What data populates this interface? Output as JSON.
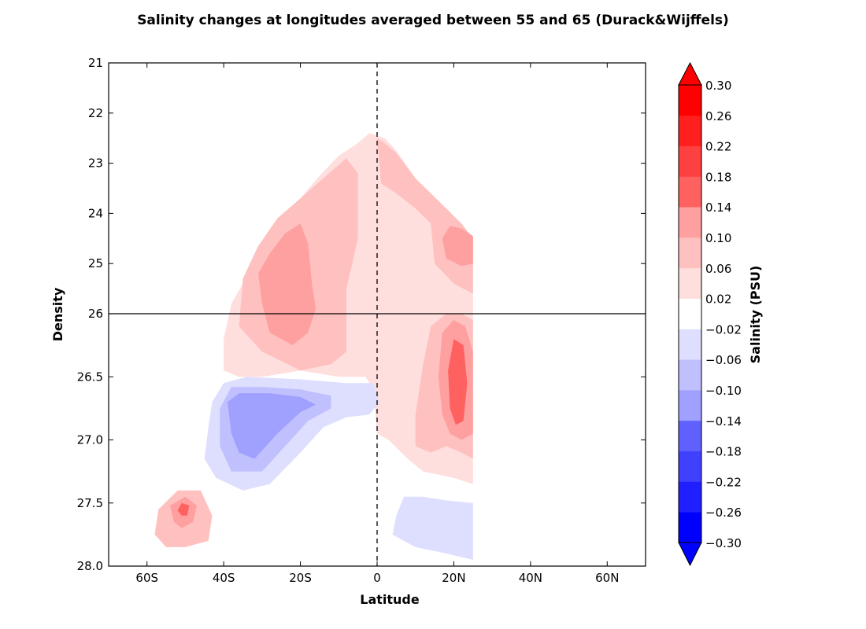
{
  "chart_data": {
    "type": "contour",
    "title": "Salinity changes at longitudes averaged between 55 and 65 (Durack&Wijffels)",
    "xlabel": "Latitude",
    "ylabel": "Density",
    "colorbar_label": "Salinity (PSU)",
    "x_ticks": [
      {
        "value": -60,
        "label": "60S"
      },
      {
        "value": -40,
        "label": "40S"
      },
      {
        "value": -20,
        "label": "20S"
      },
      {
        "value": 0,
        "label": "0"
      },
      {
        "value": 20,
        "label": "20N"
      },
      {
        "value": 40,
        "label": "40N"
      },
      {
        "value": 60,
        "label": "60N"
      }
    ],
    "xlim": [
      -70,
      70
    ],
    "y_ticks": [
      {
        "value": 21,
        "label": "21"
      },
      {
        "value": 22,
        "label": "22"
      },
      {
        "value": 23,
        "label": "23"
      },
      {
        "value": 24,
        "label": "24"
      },
      {
        "value": 25,
        "label": "25"
      },
      {
        "value": 26,
        "label": "26"
      },
      {
        "value": 26.5,
        "label": "26.5"
      },
      {
        "value": 27.0,
        "label": "27.0"
      },
      {
        "value": 27.5,
        "label": "27.5"
      },
      {
        "value": 28.0,
        "label": "28.0"
      }
    ],
    "y_axis_note": "inverted, piecewise: 21-26 linear, 26-28 stretched",
    "reference_lines": [
      {
        "orientation": "vertical",
        "value": 0,
        "style": "dashed"
      },
      {
        "orientation": "horizontal",
        "value": 26,
        "style": "solid"
      }
    ],
    "levels": [
      -0.3,
      -0.26,
      -0.22,
      -0.18,
      -0.14,
      -0.1,
      -0.06,
      -0.02,
      0.02,
      0.06,
      0.1,
      0.14,
      0.18,
      0.22,
      0.26,
      0.3
    ],
    "level_labels": [
      "−0.30",
      "−0.26",
      "−0.22",
      "−0.18",
      "−0.14",
      "−0.10",
      "−0.06",
      "−0.02",
      "0.02",
      "0.06",
      "0.10",
      "0.14",
      "0.18",
      "0.22",
      "0.26",
      "0.30"
    ],
    "band_colors": [
      "#0000ff",
      "#1f1fff",
      "#4040ff",
      "#6060ff",
      "#a0a0ff",
      "#c0c0ff",
      "#dedeff",
      "#ffffff",
      "#ffdede",
      "#ffc0c0",
      "#ffa0a0",
      "#ff6060",
      "#ff4040",
      "#ff1f1f",
      "#ff0000"
    ],
    "extend": "both",
    "regions": [
      {
        "band": 8,
        "sign": "positive",
        "points": [
          [
            -40,
            26.45
          ],
          [
            -40,
            26.2
          ],
          [
            -38,
            25.8
          ],
          [
            -35,
            25.4
          ],
          [
            -30,
            24.7
          ],
          [
            -25,
            24.1
          ],
          [
            -20,
            23.7
          ],
          [
            -15,
            23.25
          ],
          [
            -10,
            22.85
          ],
          [
            -5,
            22.6
          ],
          [
            -2,
            22.4
          ],
          [
            2,
            22.5
          ],
          [
            5,
            22.75
          ],
          [
            10,
            23.3
          ],
          [
            13,
            23.6
          ],
          [
            16,
            23.8
          ],
          [
            20,
            24.1
          ],
          [
            22,
            24.3
          ],
          [
            25,
            24.5
          ],
          [
            25,
            27.35
          ],
          [
            20,
            27.3
          ],
          [
            12,
            27.25
          ],
          [
            8,
            27.15
          ],
          [
            3,
            27.0
          ],
          [
            0,
            26.95
          ],
          [
            -1,
            26.6
          ],
          [
            -3,
            26.5
          ],
          [
            -10,
            26.5
          ],
          [
            -20,
            26.45
          ],
          [
            -30,
            26.5
          ],
          [
            -36,
            26.5
          ]
        ]
      },
      {
        "band": 9,
        "sign": "positive",
        "points": [
          [
            -36,
            26.1
          ],
          [
            -35,
            25.3
          ],
          [
            -31,
            24.65
          ],
          [
            -26,
            24.1
          ],
          [
            -20,
            23.7
          ],
          [
            -14,
            23.3
          ],
          [
            -8,
            22.9
          ],
          [
            -5,
            23.2
          ],
          [
            -5,
            24.5
          ],
          [
            -8,
            25.5
          ],
          [
            -8,
            26.3
          ],
          [
            -12,
            26.4
          ],
          [
            -20,
            26.45
          ],
          [
            -30,
            26.3
          ]
        ]
      },
      {
        "band": 9,
        "sign": "positive",
        "points": [
          [
            0,
            22.5
          ],
          [
            2,
            22.6
          ],
          [
            5,
            22.8
          ],
          [
            10,
            23.3
          ],
          [
            14,
            23.6
          ],
          [
            18,
            23.9
          ],
          [
            22,
            24.2
          ],
          [
            25,
            24.5
          ],
          [
            25,
            25.6
          ],
          [
            20,
            25.4
          ],
          [
            15,
            25.0
          ],
          [
            14,
            24.2
          ],
          [
            10,
            23.9
          ],
          [
            5,
            23.6
          ],
          [
            1,
            23.4
          ]
        ]
      },
      {
        "band": 9,
        "sign": "positive",
        "points": [
          [
            10,
            27.05
          ],
          [
            10,
            26.8
          ],
          [
            12,
            26.4
          ],
          [
            14,
            26.1
          ],
          [
            18,
            26.0
          ],
          [
            22,
            26.0
          ],
          [
            25,
            26.05
          ],
          [
            25,
            27.15
          ],
          [
            22,
            27.1
          ],
          [
            18,
            27.05
          ],
          [
            14,
            27.1
          ]
        ]
      },
      {
        "band": 9,
        "sign": "positive",
        "points": [
          [
            -55,
            27.85
          ],
          [
            -58,
            27.75
          ],
          [
            -57,
            27.55
          ],
          [
            -52,
            27.4
          ],
          [
            -46,
            27.4
          ],
          [
            -43,
            27.6
          ],
          [
            -44,
            27.8
          ],
          [
            -50,
            27.85
          ]
        ]
      },
      {
        "band": 10,
        "sign": "positive",
        "points": [
          [
            -28,
            26.15
          ],
          [
            -30,
            25.8
          ],
          [
            -31,
            25.2
          ],
          [
            -28,
            24.8
          ],
          [
            -24,
            24.4
          ],
          [
            -20,
            24.2
          ],
          [
            -18,
            24.6
          ],
          [
            -17,
            25.4
          ],
          [
            -16,
            25.9
          ],
          [
            -18,
            26.15
          ],
          [
            -22,
            26.25
          ]
        ]
      },
      {
        "band": 10,
        "sign": "positive",
        "points": [
          [
            17,
            26.8
          ],
          [
            16,
            26.5
          ],
          [
            17,
            26.15
          ],
          [
            20,
            26.05
          ],
          [
            23,
            26.1
          ],
          [
            25,
            26.3
          ],
          [
            25,
            26.95
          ],
          [
            22,
            27.0
          ],
          [
            19,
            26.95
          ]
        ]
      },
      {
        "band": 10,
        "sign": "positive",
        "points": [
          [
            18,
            24.9
          ],
          [
            17,
            24.5
          ],
          [
            19,
            24.25
          ],
          [
            22,
            24.3
          ],
          [
            25,
            24.45
          ],
          [
            25,
            25.0
          ],
          [
            22,
            25.05
          ]
        ]
      },
      {
        "band": 10,
        "sign": "positive",
        "points": [
          [
            -53,
            27.65
          ],
          [
            -54,
            27.52
          ],
          [
            -50,
            27.45
          ],
          [
            -47,
            27.52
          ],
          [
            -48,
            27.65
          ],
          [
            -51,
            27.7
          ]
        ]
      },
      {
        "band": 11,
        "sign": "positive",
        "points": [
          [
            19,
            26.75
          ],
          [
            18.5,
            26.45
          ],
          [
            20,
            26.2
          ],
          [
            22.5,
            26.25
          ],
          [
            23.5,
            26.55
          ],
          [
            22.5,
            26.85
          ],
          [
            20.5,
            26.88
          ]
        ]
      },
      {
        "band": 11,
        "sign": "positive",
        "points": [
          [
            -52,
            27.56
          ],
          [
            -51,
            27.5
          ],
          [
            -49,
            27.52
          ],
          [
            -49.5,
            27.6
          ],
          [
            -51,
            27.6
          ]
        ]
      },
      {
        "band": 6,
        "sign": "negative",
        "points": [
          [
            -45,
            27.15
          ],
          [
            -44,
            26.9
          ],
          [
            -43,
            26.7
          ],
          [
            -40,
            26.55
          ],
          [
            -34,
            26.5
          ],
          [
            -20,
            26.52
          ],
          [
            -8,
            26.55
          ],
          [
            -1,
            26.55
          ],
          [
            0.5,
            26.7
          ],
          [
            -2,
            26.8
          ],
          [
            -8,
            26.82
          ],
          [
            -14,
            26.9
          ],
          [
            -20,
            27.1
          ],
          [
            -28,
            27.35
          ],
          [
            -35,
            27.4
          ],
          [
            -42,
            27.3
          ]
        ]
      },
      {
        "band": 6,
        "sign": "negative",
        "points": [
          [
            4,
            27.75
          ],
          [
            5,
            27.6
          ],
          [
            7,
            27.45
          ],
          [
            12,
            27.45
          ],
          [
            18,
            27.48
          ],
          [
            25,
            27.5
          ],
          [
            25,
            27.95
          ],
          [
            18,
            27.9
          ],
          [
            10,
            27.85
          ]
        ]
      },
      {
        "band": 5,
        "sign": "negative",
        "points": [
          [
            -41,
            27.05
          ],
          [
            -41,
            26.75
          ],
          [
            -38,
            26.58
          ],
          [
            -30,
            26.58
          ],
          [
            -20,
            26.6
          ],
          [
            -12,
            26.65
          ],
          [
            -12,
            26.75
          ],
          [
            -18,
            26.85
          ],
          [
            -24,
            27.05
          ],
          [
            -30,
            27.25
          ],
          [
            -38,
            27.25
          ]
        ]
      },
      {
        "band": 4,
        "sign": "negative",
        "points": [
          [
            -38,
            26.95
          ],
          [
            -39,
            26.7
          ],
          [
            -36,
            26.63
          ],
          [
            -28,
            26.63
          ],
          [
            -20,
            26.66
          ],
          [
            -16,
            26.72
          ],
          [
            -20,
            26.78
          ],
          [
            -26,
            26.95
          ],
          [
            -32,
            27.15
          ],
          [
            -36,
            27.1
          ]
        ]
      }
    ]
  }
}
